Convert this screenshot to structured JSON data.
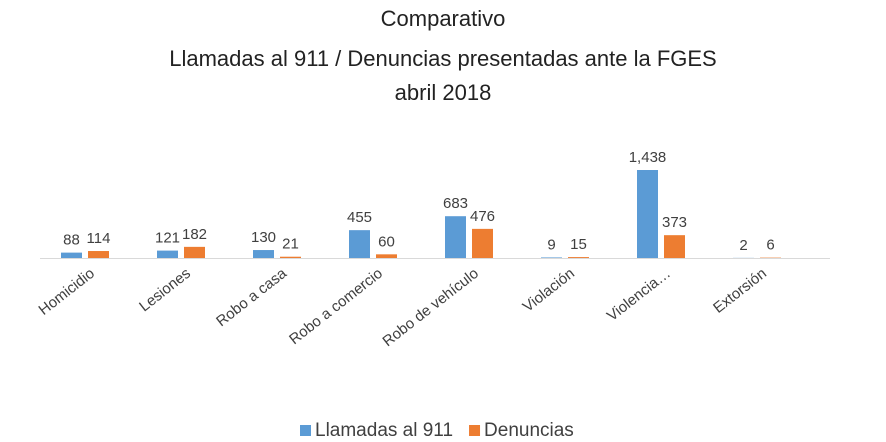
{
  "chart_data": {
    "type": "bar",
    "title": [
      "Comparativo",
      "Llamadas al 911 / Denuncias presentadas ante la FGES",
      "abril 2018"
    ],
    "categories": [
      "Homicidio",
      "Lesiones",
      "Robo a casa",
      "Robo a comercio",
      "Robo de vehículo",
      "Violación",
      "Violencia…",
      "Extorsión"
    ],
    "series": [
      {
        "name": "Llamadas al 911",
        "color": "#5b9bd5",
        "values": [
          88,
          121,
          130,
          455,
          683,
          9,
          1438,
          2
        ],
        "value_labels": [
          "88",
          "121",
          "130",
          "455",
          "683",
          "9",
          "1,438",
          "2"
        ]
      },
      {
        "name": "Denuncias",
        "color": "#ed7d31",
        "values": [
          114,
          182,
          21,
          60,
          476,
          15,
          373,
          6
        ]
      }
    ],
    "legend": "bottom"
  }
}
